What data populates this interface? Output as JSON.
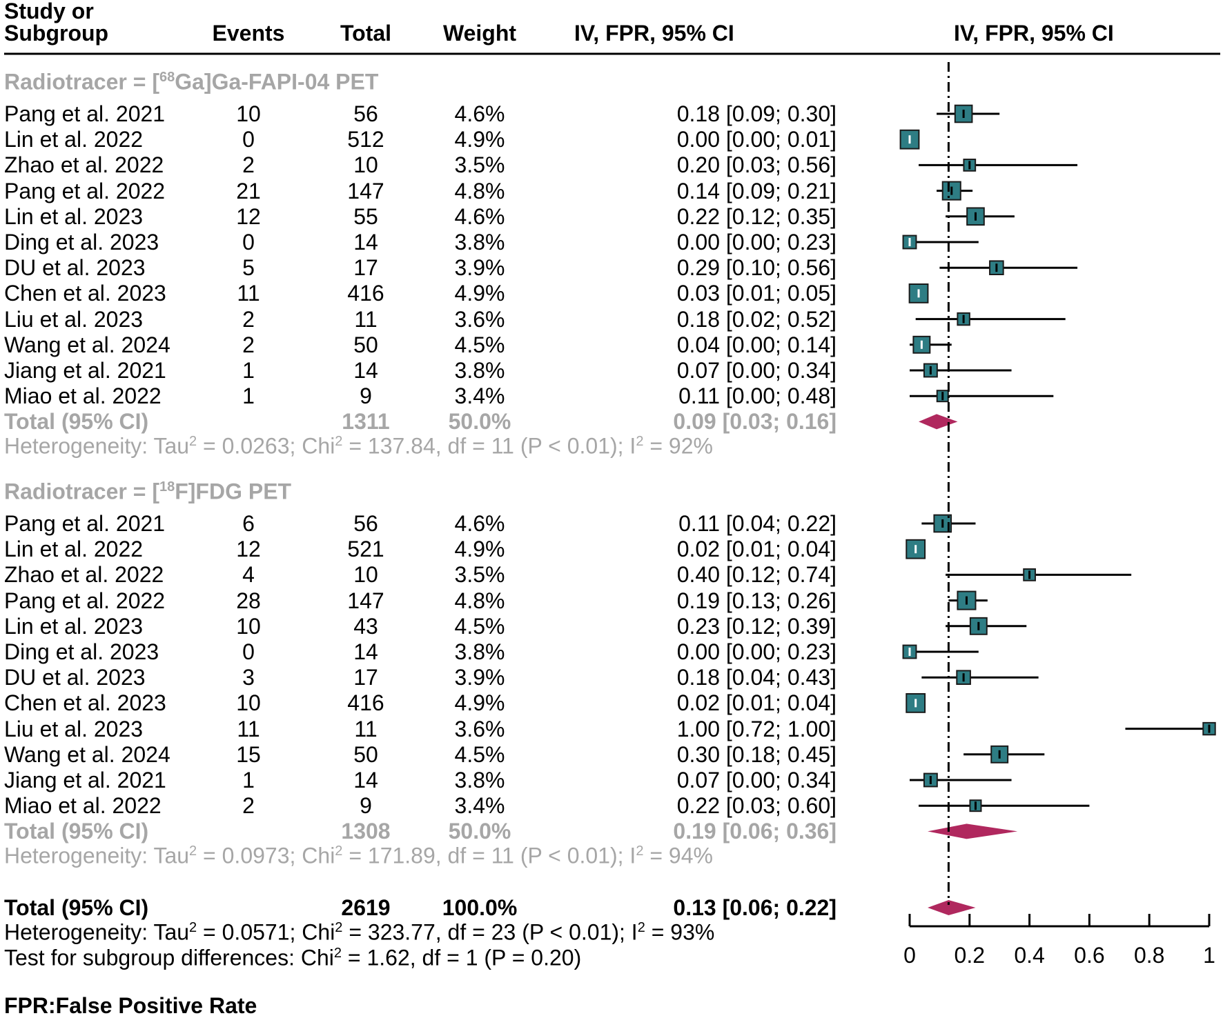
{
  "header": {
    "study_line1": "Study or",
    "study_line2": "Subgroup",
    "events": "Events",
    "total": "Total",
    "weight": "Weight",
    "ci_column": "IV, FPR, 95% CI",
    "plot_column": "IV, FPR, 95% CI"
  },
  "chart_data": {
    "type": "forest",
    "measure": "IV, FPR, 95% CI",
    "x_axis": {
      "ticks": [
        "0",
        "0.2",
        "0.4",
        "0.6",
        "0.8",
        "1"
      ],
      "range": [
        0,
        1
      ]
    },
    "reference_line": 0.13,
    "subgroups": [
      {
        "label_prefix": "Radiotracer = [",
        "label_sup": "68",
        "label_suffix": "Ga]Ga-FAPI-04 PET",
        "studies": [
          {
            "study": "Pang et al. 2021",
            "events": "10",
            "total": "56",
            "weight": "4.6%",
            "ci_text": "0.18 [0.09; 0.30]",
            "est": 0.18,
            "lo": 0.09,
            "hi": 0.3
          },
          {
            "study": "Lin et al. 2022",
            "events": "0",
            "total": "512",
            "weight": "4.9%",
            "ci_text": "0.00 [0.00; 0.01]",
            "est": 0.0,
            "lo": 0.0,
            "hi": 0.01
          },
          {
            "study": "Zhao et al. 2022",
            "events": "2",
            "total": "10",
            "weight": "3.5%",
            "ci_text": "0.20 [0.03; 0.56]",
            "est": 0.2,
            "lo": 0.03,
            "hi": 0.56
          },
          {
            "study": "Pang et al. 2022",
            "events": "21",
            "total": "147",
            "weight": "4.8%",
            "ci_text": "0.14 [0.09; 0.21]",
            "est": 0.14,
            "lo": 0.09,
            "hi": 0.21
          },
          {
            "study": "Lin et al. 2023",
            "events": "12",
            "total": "55",
            "weight": "4.6%",
            "ci_text": "0.22 [0.12; 0.35]",
            "est": 0.22,
            "lo": 0.12,
            "hi": 0.35
          },
          {
            "study": "Ding et al. 2023",
            "events": "0",
            "total": "14",
            "weight": "3.8%",
            "ci_text": "0.00 [0.00; 0.23]",
            "est": 0.0,
            "lo": 0.0,
            "hi": 0.23
          },
          {
            "study": "DU et al. 2023",
            "events": "5",
            "total": "17",
            "weight": "3.9%",
            "ci_text": "0.29 [0.10; 0.56]",
            "est": 0.29,
            "lo": 0.1,
            "hi": 0.56
          },
          {
            "study": "Chen et al. 2023",
            "events": "11",
            "total": "416",
            "weight": "4.9%",
            "ci_text": "0.03 [0.01; 0.05]",
            "est": 0.03,
            "lo": 0.01,
            "hi": 0.05
          },
          {
            "study": "Liu et al. 2023",
            "events": "2",
            "total": "11",
            "weight": "3.6%",
            "ci_text": "0.18 [0.02; 0.52]",
            "est": 0.18,
            "lo": 0.02,
            "hi": 0.52
          },
          {
            "study": "Wang et al. 2024",
            "events": "2",
            "total": "50",
            "weight": "4.5%",
            "ci_text": "0.04 [0.00; 0.14]",
            "est": 0.04,
            "lo": 0.0,
            "hi": 0.14
          },
          {
            "study": "Jiang et al. 2021",
            "events": "1",
            "total": "14",
            "weight": "3.8%",
            "ci_text": "0.07 [0.00; 0.34]",
            "est": 0.07,
            "lo": 0.0,
            "hi": 0.34
          },
          {
            "study": "Miao et al. 2022",
            "events": "1",
            "total": "9",
            "weight": "3.4%",
            "ci_text": "0.11 [0.00; 0.48]",
            "est": 0.11,
            "lo": 0.0,
            "hi": 0.48
          }
        ],
        "total": {
          "label": "Total (95% CI)",
          "total": "1311",
          "weight": "50.0%",
          "ci_text": "0.09 [0.03; 0.16]",
          "est": 0.09,
          "lo": 0.03,
          "hi": 0.16
        },
        "heterogeneity": "Heterogeneity: Tau² = 0.0263; Chi² = 137.84, df = 11 (P < 0.01); I² = 92%"
      },
      {
        "label_prefix": "Radiotracer = [",
        "label_sup": "18",
        "label_suffix": "F]FDG PET",
        "studies": [
          {
            "study": "Pang et al. 2021",
            "events": "6",
            "total": "56",
            "weight": "4.6%",
            "ci_text": "0.11 [0.04; 0.22]",
            "est": 0.11,
            "lo": 0.04,
            "hi": 0.22
          },
          {
            "study": "Lin et al. 2022",
            "events": "12",
            "total": "521",
            "weight": "4.9%",
            "ci_text": "0.02 [0.01; 0.04]",
            "est": 0.02,
            "lo": 0.01,
            "hi": 0.04
          },
          {
            "study": "Zhao et al. 2022",
            "events": "4",
            "total": "10",
            "weight": "3.5%",
            "ci_text": "0.40 [0.12; 0.74]",
            "est": 0.4,
            "lo": 0.12,
            "hi": 0.74
          },
          {
            "study": "Pang et al. 2022",
            "events": "28",
            "total": "147",
            "weight": "4.8%",
            "ci_text": "0.19 [0.13; 0.26]",
            "est": 0.19,
            "lo": 0.13,
            "hi": 0.26
          },
          {
            "study": "Lin et al. 2023",
            "events": "10",
            "total": "43",
            "weight": "4.5%",
            "ci_text": "0.23 [0.12; 0.39]",
            "est": 0.23,
            "lo": 0.12,
            "hi": 0.39
          },
          {
            "study": "Ding et al. 2023",
            "events": "0",
            "total": "14",
            "weight": "3.8%",
            "ci_text": "0.00 [0.00; 0.23]",
            "est": 0.0,
            "lo": 0.0,
            "hi": 0.23
          },
          {
            "study": "DU et al. 2023",
            "events": "3",
            "total": "17",
            "weight": "3.9%",
            "ci_text": "0.18 [0.04; 0.43]",
            "est": 0.18,
            "lo": 0.04,
            "hi": 0.43
          },
          {
            "study": "Chen et al. 2023",
            "events": "10",
            "total": "416",
            "weight": "4.9%",
            "ci_text": "0.02 [0.01; 0.04]",
            "est": 0.02,
            "lo": 0.01,
            "hi": 0.04
          },
          {
            "study": "Liu et al. 2023",
            "events": "11",
            "total": "11",
            "weight": "3.6%",
            "ci_text": "1.00 [0.72; 1.00]",
            "est": 1.0,
            "lo": 0.72,
            "hi": 1.0
          },
          {
            "study": "Wang et al. 2024",
            "events": "15",
            "total": "50",
            "weight": "4.5%",
            "ci_text": "0.30 [0.18; 0.45]",
            "est": 0.3,
            "lo": 0.18,
            "hi": 0.45
          },
          {
            "study": "Jiang et al. 2021",
            "events": "1",
            "total": "14",
            "weight": "3.8%",
            "ci_text": "0.07 [0.00; 0.34]",
            "est": 0.07,
            "lo": 0.0,
            "hi": 0.34
          },
          {
            "study": "Miao et al. 2022",
            "events": "2",
            "total": "9",
            "weight": "3.4%",
            "ci_text": "0.22 [0.03; 0.60]",
            "est": 0.22,
            "lo": 0.03,
            "hi": 0.6
          }
        ],
        "total": {
          "label": "Total (95% CI)",
          "total": "1308",
          "weight": "50.0%",
          "ci_text": "0.19 [0.06; 0.36]",
          "est": 0.19,
          "lo": 0.06,
          "hi": 0.36
        },
        "heterogeneity": "Heterogeneity: Tau² = 0.0973; Chi² = 171.89, df = 11 (P < 0.01); I² = 94%"
      }
    ],
    "overall": {
      "label": "Total (95% CI)",
      "total": "2619",
      "weight": "100.0%",
      "ci_text": "0.13 [0.06; 0.22]",
      "est": 0.13,
      "lo": 0.06,
      "hi": 0.22,
      "heterogeneity": "Heterogeneity: Tau² = 0.0571; Chi² = 323.77, df = 23 (P < 0.01); I² = 93%",
      "subgroup_test": "Test for subgroup differences: Chi² = 1.62, df = 1 (P = 0.20)"
    }
  },
  "footnote": "FPR:False Positive Rate",
  "colors": {
    "box": "#2e7d84",
    "diamond": "#b0285e",
    "subgroup_text": "#a6a6a6"
  }
}
